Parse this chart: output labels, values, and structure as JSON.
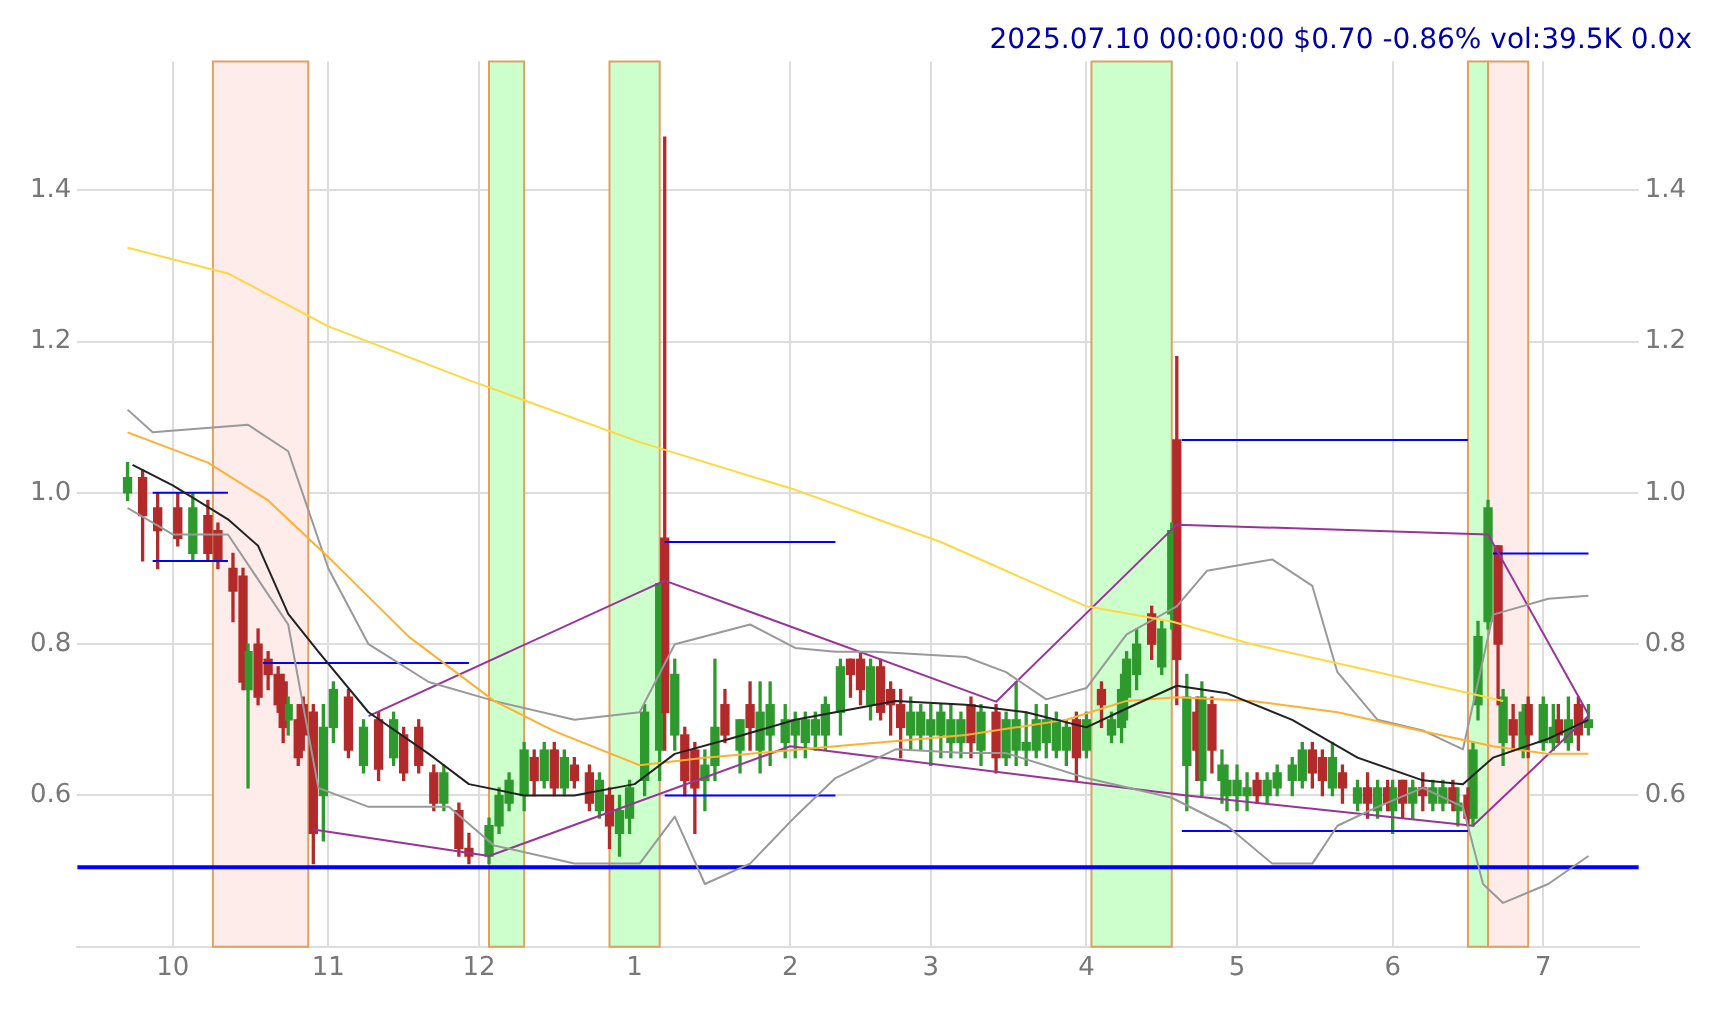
{
  "chart_data": {
    "type": "candlestick",
    "title": "2025.07.10 00:00:00 $0.70 -0.86% vol:39.5K 0.0x",
    "x": [
      "2024-09-22",
      "2024-09-25",
      "2024-09-28",
      "2024-10-02",
      "2024-10-05",
      "2024-10-08",
      "2024-10-10",
      "2024-10-13",
      "2024-10-15",
      "2024-10-16",
      "2024-10-18",
      "2024-10-20",
      "2024-10-22",
      "2024-10-23",
      "2024-10-24",
      "2024-10-26",
      "2024-10-27",
      "2024-10-29",
      "2024-10-31",
      "2024-11-02",
      "2024-11-05",
      "2024-11-08",
      "2024-11-11",
      "2024-11-14",
      "2024-11-16",
      "2024-11-19",
      "2024-11-22",
      "2024-11-24",
      "2024-11-27",
      "2024-11-29",
      "2024-12-03",
      "2024-12-05",
      "2024-12-07",
      "2024-12-10",
      "2024-12-12",
      "2024-12-14",
      "2024-12-16",
      "2024-12-18",
      "2024-12-20",
      "2024-12-23",
      "2024-12-25",
      "2024-12-27",
      "2024-12-29",
      "2024-12-31",
      "2025-01-03",
      "2025-01-06",
      "2025-01-07",
      "2025-01-09",
      "2025-01-11",
      "2025-01-13",
      "2025-01-15",
      "2025-01-17",
      "2025-01-19",
      "2025-01-22",
      "2025-01-24",
      "2025-01-26",
      "2025-01-28",
      "2025-01-31",
      "2025-02-02",
      "2025-02-04",
      "2025-02-06",
      "2025-02-08",
      "2025-02-11",
      "2025-02-13",
      "2025-02-15",
      "2025-02-17",
      "2025-02-19",
      "2025-02-21",
      "2025-02-23",
      "2025-02-25",
      "2025-02-27",
      "2025-03-01",
      "2025-03-03",
      "2025-03-05",
      "2025-03-07",
      "2025-03-09",
      "2025-03-11",
      "2025-03-14",
      "2025-03-16",
      "2025-03-18",
      "2025-03-20",
      "2025-03-22",
      "2025-03-24",
      "2025-03-26",
      "2025-03-28",
      "2025-03-30",
      "2025-04-01",
      "2025-04-04",
      "2025-04-06",
      "2025-04-08",
      "2025-04-09",
      "2025-04-11",
      "2025-04-14",
      "2025-04-16",
      "2025-04-18",
      "2025-04-19",
      "2025-04-21",
      "2025-04-23",
      "2025-04-24",
      "2025-04-26",
      "2025-04-28",
      "2025-04-29",
      "2025-05-01",
      "2025-05-03",
      "2025-05-05",
      "2025-05-07",
      "2025-05-09",
      "2025-05-12",
      "2025-05-14",
      "2025-05-16",
      "2025-05-18",
      "2025-05-20",
      "2025-05-22",
      "2025-05-25",
      "2025-05-27",
      "2025-05-29",
      "2025-05-31",
      "2025-06-01",
      "2025-06-03",
      "2025-06-05",
      "2025-06-07",
      "2025-06-09",
      "2025-06-11",
      "2025-06-13",
      "2025-06-14",
      "2025-06-16",
      "2025-06-17",
      "2025-06-18",
      "2025-06-20",
      "2025-06-22",
      "2025-06-23",
      "2025-06-25",
      "2025-06-27",
      "2025-06-28",
      "2025-07-01",
      "2025-07-03",
      "2025-07-04",
      "2025-07-06",
      "2025-07-08",
      "2025-07-10"
    ],
    "ohlc": [
      [
        1.0,
        1.04,
        0.99,
        1.02
      ],
      [
        1.02,
        1.03,
        0.91,
        0.97
      ],
      [
        0.98,
        1.0,
        0.9,
        0.95
      ],
      [
        0.98,
        1.0,
        0.93,
        0.94
      ],
      [
        0.92,
        1.0,
        0.91,
        0.98
      ],
      [
        0.97,
        0.99,
        0.91,
        0.92
      ],
      [
        0.95,
        0.96,
        0.9,
        0.91
      ],
      [
        0.9,
        0.92,
        0.83,
        0.87
      ],
      [
        0.89,
        0.9,
        0.74,
        0.75
      ],
      [
        0.74,
        0.8,
        0.61,
        0.79
      ],
      [
        0.8,
        0.82,
        0.72,
        0.73
      ],
      [
        0.78,
        0.79,
        0.74,
        0.76
      ],
      [
        0.76,
        0.77,
        0.71,
        0.72
      ],
      [
        0.75,
        0.76,
        0.67,
        0.69
      ],
      [
        0.7,
        0.73,
        0.68,
        0.72
      ],
      [
        0.7,
        0.72,
        0.64,
        0.65
      ],
      [
        0.72,
        0.73,
        0.66,
        0.68
      ],
      [
        0.71,
        0.72,
        0.51,
        0.55
      ],
      [
        0.6,
        0.72,
        0.54,
        0.69
      ],
      [
        0.69,
        0.75,
        0.67,
        0.74
      ],
      [
        0.73,
        0.74,
        0.65,
        0.66
      ],
      [
        0.64,
        0.7,
        0.63,
        0.69
      ],
      [
        0.7,
        0.71,
        0.62,
        0.635
      ],
      [
        0.65,
        0.71,
        0.64,
        0.7
      ],
      [
        0.68,
        0.69,
        0.62,
        0.63
      ],
      [
        0.69,
        0.7,
        0.63,
        0.64
      ],
      [
        0.63,
        0.64,
        0.58,
        0.59
      ],
      [
        0.59,
        0.64,
        0.58,
        0.63
      ],
      [
        0.58,
        0.59,
        0.52,
        0.53
      ],
      [
        0.53,
        0.55,
        0.51,
        0.52
      ],
      [
        0.52,
        0.57,
        0.51,
        0.56
      ],
      [
        0.56,
        0.61,
        0.55,
        0.6
      ],
      [
        0.59,
        0.63,
        0.58,
        0.62
      ],
      [
        0.6,
        0.67,
        0.58,
        0.66
      ],
      [
        0.65,
        0.66,
        0.6,
        0.62
      ],
      [
        0.62,
        0.67,
        0.61,
        0.66
      ],
      [
        0.66,
        0.67,
        0.6,
        0.61
      ],
      [
        0.61,
        0.66,
        0.6,
        0.65
      ],
      [
        0.64,
        0.65,
        0.61,
        0.62
      ],
      [
        0.63,
        0.64,
        0.58,
        0.59
      ],
      [
        0.58,
        0.63,
        0.57,
        0.62
      ],
      [
        0.6,
        0.61,
        0.53,
        0.56
      ],
      [
        0.55,
        0.6,
        0.52,
        0.58
      ],
      [
        0.57,
        0.62,
        0.55,
        0.61
      ],
      [
        0.62,
        0.72,
        0.6,
        0.71
      ],
      [
        0.66,
        0.88,
        0.62,
        0.88
      ],
      [
        0.94,
        1.47,
        0.66,
        0.71
      ],
      [
        0.68,
        0.78,
        0.66,
        0.76
      ],
      [
        0.68,
        0.69,
        0.6,
        0.62
      ],
      [
        0.66,
        0.67,
        0.55,
        0.61
      ],
      [
        0.62,
        0.66,
        0.58,
        0.64
      ],
      [
        0.64,
        0.78,
        0.62,
        0.69
      ],
      [
        0.72,
        0.74,
        0.67,
        0.68
      ],
      [
        0.66,
        0.7,
        0.63,
        0.7
      ],
      [
        0.72,
        0.75,
        0.66,
        0.69
      ],
      [
        0.66,
        0.75,
        0.63,
        0.71
      ],
      [
        0.68,
        0.75,
        0.64,
        0.72
      ],
      [
        0.67,
        0.72,
        0.65,
        0.7
      ],
      [
        0.68,
        0.71,
        0.65,
        0.7
      ],
      [
        0.67,
        0.71,
        0.65,
        0.7
      ],
      [
        0.68,
        0.71,
        0.66,
        0.7
      ],
      [
        0.68,
        0.73,
        0.66,
        0.72
      ],
      [
        0.71,
        0.78,
        0.68,
        0.77
      ],
      [
        0.78,
        0.78,
        0.73,
        0.76
      ],
      [
        0.78,
        0.79,
        0.72,
        0.74
      ],
      [
        0.72,
        0.78,
        0.7,
        0.77
      ],
      [
        0.77,
        0.78,
        0.7,
        0.71
      ],
      [
        0.74,
        0.75,
        0.68,
        0.72
      ],
      [
        0.72,
        0.74,
        0.65,
        0.69
      ],
      [
        0.68,
        0.73,
        0.66,
        0.71
      ],
      [
        0.68,
        0.72,
        0.66,
        0.71
      ],
      [
        0.68,
        0.72,
        0.64,
        0.7
      ],
      [
        0.68,
        0.72,
        0.65,
        0.71
      ],
      [
        0.67,
        0.72,
        0.65,
        0.7
      ],
      [
        0.67,
        0.71,
        0.65,
        0.7
      ],
      [
        0.72,
        0.73,
        0.65,
        0.67
      ],
      [
        0.66,
        0.72,
        0.64,
        0.71
      ],
      [
        0.71,
        0.72,
        0.63,
        0.65
      ],
      [
        0.65,
        0.71,
        0.64,
        0.7
      ],
      [
        0.66,
        0.75,
        0.64,
        0.7
      ],
      [
        0.66,
        0.71,
        0.64,
        0.67
      ],
      [
        0.66,
        0.72,
        0.65,
        0.7
      ],
      [
        0.67,
        0.72,
        0.65,
        0.7
      ],
      [
        0.66,
        0.71,
        0.65,
        0.7
      ],
      [
        0.66,
        0.7,
        0.64,
        0.69
      ],
      [
        0.7,
        0.71,
        0.62,
        0.65
      ],
      [
        0.66,
        0.71,
        0.65,
        0.7
      ],
      [
        0.74,
        0.75,
        0.69,
        0.72
      ],
      [
        0.68,
        0.71,
        0.67,
        0.7
      ],
      [
        0.69,
        0.76,
        0.67,
        0.74
      ],
      [
        0.73,
        0.79,
        0.7,
        0.78
      ],
      [
        0.76,
        0.82,
        0.74,
        0.8
      ],
      [
        0.84,
        0.85,
        0.78,
        0.8
      ],
      [
        0.77,
        0.83,
        0.76,
        0.82
      ],
      [
        0.84,
        0.96,
        0.82,
        0.95
      ],
      [
        1.07,
        1.18,
        0.72,
        0.78
      ],
      [
        0.64,
        0.76,
        0.58,
        0.73
      ],
      [
        0.71,
        0.73,
        0.62,
        0.66
      ],
      [
        0.62,
        0.75,
        0.6,
        0.73
      ],
      [
        0.72,
        0.73,
        0.63,
        0.66
      ],
      [
        0.62,
        0.66,
        0.59,
        0.64
      ],
      [
        0.6,
        0.64,
        0.58,
        0.62
      ],
      [
        0.6,
        0.64,
        0.58,
        0.62
      ],
      [
        0.6,
        0.63,
        0.58,
        0.61
      ],
      [
        0.62,
        0.63,
        0.59,
        0.6
      ],
      [
        0.6,
        0.63,
        0.59,
        0.62
      ],
      [
        0.61,
        0.64,
        0.6,
        0.63
      ],
      [
        0.62,
        0.65,
        0.6,
        0.64
      ],
      [
        0.62,
        0.67,
        0.61,
        0.66
      ],
      [
        0.66,
        0.67,
        0.61,
        0.63
      ],
      [
        0.65,
        0.66,
        0.6,
        0.62
      ],
      [
        0.61,
        0.67,
        0.6,
        0.65
      ],
      [
        0.63,
        0.64,
        0.59,
        0.61
      ],
      [
        0.59,
        0.62,
        0.58,
        0.61
      ],
      [
        0.61,
        0.63,
        0.57,
        0.59
      ],
      [
        0.58,
        0.62,
        0.57,
        0.61
      ],
      [
        0.61,
        0.62,
        0.58,
        0.59
      ],
      [
        0.58,
        0.62,
        0.55,
        0.61
      ],
      [
        0.62,
        0.62,
        0.57,
        0.59
      ],
      [
        0.59,
        0.62,
        0.57,
        0.61
      ],
      [
        0.61,
        0.63,
        0.58,
        0.6
      ],
      [
        0.59,
        0.62,
        0.58,
        0.61
      ],
      [
        0.59,
        0.62,
        0.58,
        0.61
      ],
      [
        0.61,
        0.62,
        0.58,
        0.59
      ],
      [
        0.58,
        0.61,
        0.56,
        0.59
      ],
      [
        0.6,
        0.61,
        0.56,
        0.57
      ],
      [
        0.57,
        0.67,
        0.56,
        0.66
      ],
      [
        0.72,
        0.83,
        0.7,
        0.81
      ],
      [
        0.83,
        0.99,
        0.82,
        0.98
      ],
      [
        0.93,
        0.93,
        0.72,
        0.8
      ],
      [
        0.67,
        0.74,
        0.64,
        0.73
      ],
      [
        0.7,
        0.72,
        0.66,
        0.68
      ],
      [
        0.66,
        0.72,
        0.65,
        0.71
      ],
      [
        0.72,
        0.73,
        0.65,
        0.68
      ],
      [
        0.67,
        0.73,
        0.66,
        0.72
      ],
      [
        0.67,
        0.72,
        0.66,
        0.69
      ],
      [
        0.7,
        0.72,
        0.67,
        0.68
      ],
      [
        0.67,
        0.73,
        0.66,
        0.7
      ],
      [
        0.72,
        0.73,
        0.66,
        0.68
      ],
      [
        0.69,
        0.72,
        0.68,
        0.7
      ]
    ],
    "series": [
      {
        "type": "line",
        "color": "#222222",
        "x": [
          "2024-09-23",
          "2024-10-01",
          "2024-10-12",
          "2024-10-18",
          "2024-10-24",
          "2024-10-30",
          "2024-11-09",
          "2024-11-21",
          "2024-11-29",
          "2024-12-10",
          "2024-12-20",
          "2025-01-01",
          "2025-01-09",
          "2025-01-20",
          "2025-02-02",
          "2025-02-10",
          "2025-02-22",
          "2025-03-08",
          "2025-03-20",
          "2025-04-01",
          "2025-04-09",
          "2025-04-19",
          "2025-04-29",
          "2025-05-12",
          "2025-05-25",
          "2025-06-07",
          "2025-06-15",
          "2025-06-21",
          "2025-07-02",
          "2025-07-10"
        ],
        "values": [
          1.037,
          1.01,
          0.965,
          0.93,
          0.84,
          0.79,
          0.71,
          0.655,
          0.615,
          0.6,
          0.6,
          0.615,
          0.655,
          0.675,
          0.7,
          0.71,
          0.725,
          0.72,
          0.71,
          0.69,
          0.715,
          0.745,
          0.735,
          0.7,
          0.65,
          0.62,
          0.615,
          0.65,
          0.675,
          0.7
        ]
      },
      {
        "type": "line",
        "color": "#ffb030",
        "x": [
          "2024-09-22",
          "2024-10-08",
          "2024-10-20",
          "2024-11-01",
          "2024-11-17",
          "2024-12-04",
          "2024-12-16",
          "2025-01-02",
          "2025-01-15",
          "2025-02-10",
          "2025-03-08",
          "2025-03-28",
          "2025-04-09",
          "2025-04-19",
          "2025-05-04",
          "2025-05-21",
          "2025-06-07",
          "2025-06-21",
          "2025-07-02",
          "2025-07-10"
        ],
        "values": [
          1.08,
          1.04,
          0.99,
          0.915,
          0.81,
          0.725,
          0.685,
          0.64,
          0.65,
          0.665,
          0.68,
          0.7,
          0.725,
          0.73,
          0.725,
          0.71,
          0.685,
          0.665,
          0.655,
          0.655
        ]
      },
      {
        "type": "line",
        "color": "#ffd840",
        "x": [
          "2024-09-22",
          "2024-10-12",
          "2024-11-01",
          "2024-11-29",
          "2025-01-02",
          "2025-02-02",
          "2025-03-03",
          "2025-04-01",
          "2025-04-18",
          "2025-05-04",
          "2025-05-29",
          "2025-06-23"
        ],
        "values": [
          1.324,
          1.29,
          1.22,
          1.149,
          1.067,
          1.004,
          0.935,
          0.85,
          0.83,
          0.8,
          0.763,
          0.725
        ]
      },
      {
        "type": "line",
        "color": "#999999",
        "x": [
          "2024-09-22",
          "2024-09-27",
          "2024-10-16",
          "2024-10-24",
          "2024-11-01",
          "2024-11-09",
          "2024-11-21",
          "2024-12-04",
          "2024-12-20",
          "2025-01-02",
          "2025-01-09",
          "2025-01-24",
          "2025-02-02",
          "2025-02-10",
          "2025-02-18",
          "2025-03-08",
          "2025-03-16",
          "2025-03-24",
          "2025-04-01",
          "2025-04-09",
          "2025-04-19",
          "2025-04-25",
          "2025-05-08",
          "2025-05-16",
          "2025-05-21",
          "2025-05-29",
          "2025-06-07",
          "2025-06-15",
          "2025-06-21",
          "2025-07-02",
          "2025-07-10"
        ],
        "values": [
          1.11,
          1.08,
          1.09,
          1.055,
          0.9,
          0.8,
          0.75,
          0.725,
          0.7,
          0.71,
          0.8,
          0.826,
          0.795,
          0.79,
          0.79,
          0.783,
          0.763,
          0.727,
          0.742,
          0.813,
          0.85,
          0.897,
          0.912,
          0.877,
          0.763,
          0.7,
          0.686,
          0.661,
          0.839,
          0.86,
          0.864
        ]
      },
      {
        "type": "line",
        "color": "#999999",
        "x": [
          "2024-09-22",
          "2024-10-01",
          "2024-10-12",
          "2024-10-24",
          "2024-10-30",
          "2024-11-09",
          "2024-11-25",
          "2024-12-04",
          "2024-12-20",
          "2025-01-02",
          "2025-01-09",
          "2025-01-15",
          "2025-01-24",
          "2025-02-02",
          "2025-02-10",
          "2025-02-22",
          "2025-03-08",
          "2025-03-16",
          "2025-04-01",
          "2025-04-18",
          "2025-04-29",
          "2025-05-08",
          "2025-05-16",
          "2025-05-21",
          "2025-05-29",
          "2025-06-07",
          "2025-06-15",
          "2025-06-19",
          "2025-06-23",
          "2025-07-02",
          "2025-07-10"
        ],
        "values": [
          0.98,
          0.945,
          0.945,
          0.826,
          0.61,
          0.585,
          0.585,
          0.534,
          0.51,
          0.51,
          0.572,
          0.483,
          0.51,
          0.572,
          0.623,
          0.661,
          0.656,
          0.656,
          0.623,
          0.597,
          0.56,
          0.51,
          0.51,
          0.56,
          0.585,
          0.61,
          0.585,
          0.483,
          0.458,
          0.483,
          0.52
        ]
      },
      {
        "type": "line",
        "color": "#993399",
        "x": [
          "2024-10-29",
          "2024-12-03",
          "2025-02-01",
          "2025-04-21",
          "2025-06-17",
          "2025-07-10"
        ],
        "values": [
          0.555,
          0.52,
          0.665,
          0.6,
          0.56,
          0.705
        ]
      },
      {
        "type": "line",
        "color": "#993399",
        "x": [
          "2024-11-09",
          "2025-01-07",
          "2025-03-14",
          "2025-04-19",
          "2025-06-20",
          "2025-07-10"
        ],
        "values": [
          0.705,
          0.884,
          0.724,
          0.958,
          0.945,
          0.707
        ]
      },
      {
        "type": "line",
        "color": "#0000ff",
        "x": [
          "2024-09-27",
          "2024-10-12"
        ],
        "values": [
          1.0,
          1.0
        ]
      },
      {
        "type": "line",
        "color": "#0000ff",
        "x": [
          "2024-09-27",
          "2024-10-12"
        ],
        "values": [
          0.91,
          0.91
        ]
      },
      {
        "type": "line",
        "color": "#0000ff",
        "x": [
          "2024-10-19",
          "2024-11-29"
        ],
        "values": [
          0.775,
          0.775
        ]
      },
      {
        "type": "line",
        "color": "#0000ff",
        "x": [
          "2025-01-07",
          "2025-02-10"
        ],
        "values": [
          0.935,
          0.935
        ]
      },
      {
        "type": "line",
        "color": "#0000ff",
        "x": [
          "2025-01-07",
          "2025-02-10"
        ],
        "values": [
          0.6,
          0.6
        ]
      },
      {
        "type": "line",
        "color": "#0000ff",
        "x": [
          "2025-04-20",
          "2025-06-16"
        ],
        "values": [
          1.07,
          1.07
        ]
      },
      {
        "type": "line",
        "color": "#0000ff",
        "x": [
          "2025-04-20",
          "2025-06-16"
        ],
        "values": [
          0.553,
          0.553
        ]
      },
      {
        "type": "line",
        "color": "#0000ff",
        "x": [
          "2025-06-21",
          "2025-07-10"
        ],
        "values": [
          0.92,
          0.92
        ]
      }
    ],
    "bands": [
      {
        "axis": "x",
        "from": "2024-10-09",
        "to": "2024-10-28",
        "color": "#fdecea"
      },
      {
        "axis": "x",
        "from": "2024-12-03",
        "to": "2024-12-10",
        "color": "#ccffcc"
      },
      {
        "axis": "x",
        "from": "2024-12-27",
        "to": "2025-01-06",
        "color": "#ccffcc"
      },
      {
        "axis": "x",
        "from": "2025-04-02",
        "to": "2025-04-18",
        "color": "#ccffcc"
      },
      {
        "axis": "x",
        "from": "2025-06-16",
        "to": "2025-06-20",
        "color": "#ccffcc"
      },
      {
        "axis": "x",
        "from": "2025-06-20",
        "to": "2025-06-28",
        "color": "#fdecea"
      }
    ],
    "ref_lines": [
      {
        "axis": "y",
        "value": 0.505,
        "color": "#0000ff"
      }
    ],
    "xlim": [
      "2024-09-12",
      "2025-07-20"
    ],
    "xticks": [
      {
        "value": "2024-10-01",
        "label": "10"
      },
      {
        "value": "2024-11-01",
        "label": "11"
      },
      {
        "value": "2024-12-01",
        "label": "12"
      },
      {
        "value": "2025-01-01",
        "label": "1"
      },
      {
        "value": "2025-02-01",
        "label": "2"
      },
      {
        "value": "2025-03-01",
        "label": "3"
      },
      {
        "value": "2025-04-01",
        "label": "4"
      },
      {
        "value": "2025-05-01",
        "label": "5"
      },
      {
        "value": "2025-06-01",
        "label": "6"
      },
      {
        "value": "2025-07-01",
        "label": "7"
      }
    ],
    "ylim": [
      0.4,
      1.57
    ],
    "yticks": [
      0.6,
      0.8,
      {
        "value": 1.0,
        "label": "1.0"
      },
      1.2,
      1.4
    ],
    "y2lim": [
      0.4,
      1.57
    ],
    "y2ticks": [
      0.6,
      0.8,
      {
        "value": 1.0,
        "label": "1.0"
      },
      1.2,
      1.4
    ],
    "grid": true,
    "legend": false
  }
}
